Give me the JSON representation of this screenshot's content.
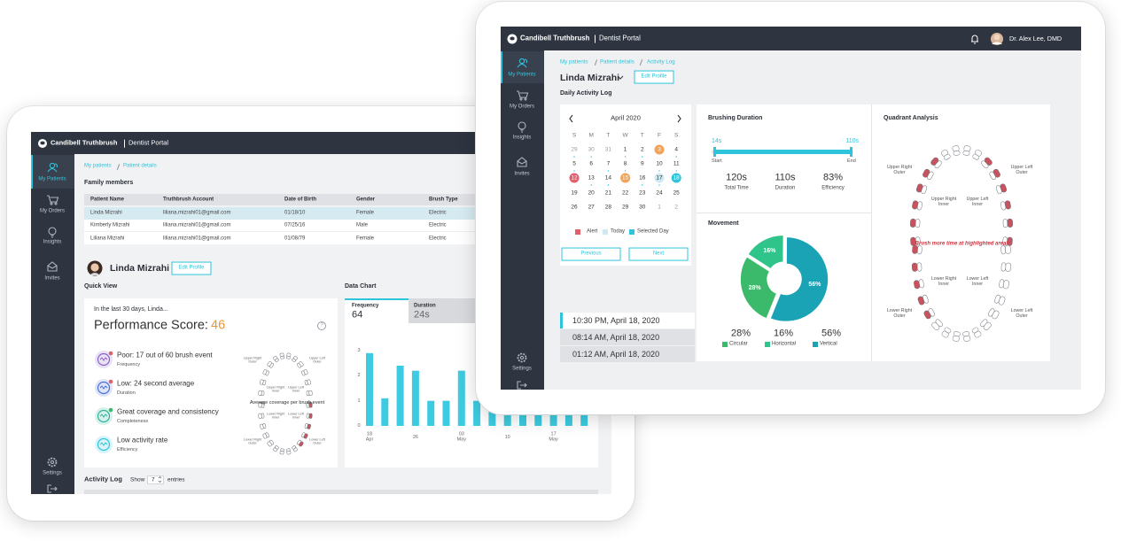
{
  "back_screen": {
    "header": {
      "brand": "Candibell Truthbrush",
      "portal": "Dentist Portal"
    },
    "nav": [
      "My Patients",
      "My Orders",
      "Insights",
      "Invites",
      "Settings"
    ],
    "breadcrumb": [
      "My patients",
      "Patient details"
    ],
    "family": {
      "title": "Family members",
      "columns": [
        "Patient Name",
        "Truthbrush Account",
        "Date of Birth",
        "Gender",
        "Brush Type"
      ],
      "rows": [
        [
          "Linda Mizrahi",
          "liliana.mizrahi01@gmail.com",
          "01/18/10",
          "Female",
          "Electric"
        ],
        [
          "Kimberly Mizrahi",
          "liliana.mizrahi01@gmail.com",
          "07/25/16",
          "Male",
          "Electric"
        ],
        [
          "Liliana Mizrahi",
          "liliana.mizrahi01@gmail.com",
          "01/08/79",
          "Female",
          "Electric"
        ]
      ]
    },
    "patient": {
      "name": "Linda Mizrahi",
      "edit": "Edit Profile"
    },
    "quick_view": {
      "title": "Quick View",
      "intro": "In the last 30 days, Linda...",
      "score_label": "Performance Score:",
      "score": 46,
      "help": "?",
      "items": [
        {
          "text": "Poor: 17 out of 60 brush event",
          "metric": "Frequency"
        },
        {
          "text": "Low: 24 second average",
          "metric": "Duration"
        },
        {
          "text": "Great coverage and consistency",
          "metric": "Completeness"
        },
        {
          "text": "Low activity rate",
          "metric": "Efficiency"
        }
      ],
      "coverage_caption": "Average coverage per brush event",
      "tooth_labels": [
        "Upper Right Outer",
        "Upper Left Outer",
        "Upper Right Inner",
        "Upper Left Inner",
        "Lower Right Inner",
        "Lower Left Inner",
        "Lower Right Outer",
        "Lower Left Outer"
      ]
    },
    "data_chart": {
      "title": "Data Chart",
      "tabs": [
        {
          "name": "Frequency",
          "value": "64"
        },
        {
          "name": "Duration",
          "value": "24s"
        }
      ],
      "chart": {
        "type": "bar",
        "categories": [
          "18 Apr",
          null,
          null,
          "26",
          null,
          null,
          "03 May",
          null,
          null,
          "10",
          null,
          null,
          "17 May",
          null,
          null
        ],
        "values": [
          2.9,
          1.1,
          2.4,
          2.2,
          1,
          1,
          2.2,
          1,
          1,
          1.6,
          1,
          1.3,
          1,
          2.1,
          1
        ],
        "color": "#3ccbe0",
        "ylim": [
          0,
          3
        ],
        "yticks": [
          0,
          1,
          2,
          3
        ]
      }
    },
    "activity_log": {
      "title": "Activity Log",
      "show": "Show",
      "count": 7,
      "entries": "entries"
    }
  },
  "front_screen": {
    "header": {
      "brand": "Candibell Truthbrush",
      "portal": "Dentist Portal",
      "user": "Dr. Alex Lee, DMD"
    },
    "nav": [
      "My Patients",
      "My Orders",
      "Insights",
      "Invites",
      "Settings"
    ],
    "breadcrumb": [
      "My patients",
      "Patient details",
      "Activity Log"
    ],
    "patient": {
      "name": "Linda Mizrahi",
      "edit": "Edit Profile"
    },
    "section_title": "Daily Activity Log",
    "calendar": {
      "month": "April 2020",
      "weekdays": [
        "S",
        "M",
        "T",
        "W",
        "T",
        "F",
        "S"
      ],
      "weeks": [
        [
          29,
          30,
          31,
          1,
          2,
          3,
          4
        ],
        [
          5,
          6,
          7,
          8,
          9,
          10,
          11
        ],
        [
          12,
          13,
          14,
          15,
          16,
          17,
          18
        ],
        [
          19,
          20,
          21,
          22,
          23,
          24,
          25
        ],
        [
          26,
          27,
          28,
          29,
          30,
          1,
          2
        ]
      ],
      "legend": [
        "Alert",
        "Today",
        "Selected Day"
      ],
      "buttons": [
        "Previous",
        "Next"
      ]
    },
    "times": [
      "10:30 PM, April 18, 2020",
      "08:14 AM, April 18, 2020",
      "01:12 AM, April 18, 2020"
    ],
    "brushing": {
      "title": "Brushing Duration",
      "min_label": "14s",
      "max_label": "110s",
      "start": "Start",
      "end": "End",
      "stats": [
        {
          "value": "120s",
          "label": "Total Time"
        },
        {
          "value": "110s",
          "label": "Duration"
        },
        {
          "value": "83%",
          "label": "Efficiency"
        }
      ]
    },
    "movement": {
      "type": "pie",
      "title": "Movement",
      "categories": [
        "Circular",
        "Horizontal",
        "Vertical"
      ],
      "values": [
        28,
        16,
        56
      ],
      "value_labels": [
        "28%",
        "16%",
        "56%"
      ],
      "colors": [
        "#3cba6b",
        "#2fc48a",
        "#1aa3b5"
      ]
    },
    "quadrant": {
      "title": "Quadrant Analysis",
      "labels": [
        "Upper Right Outer",
        "Upper Left Outer",
        "Upper Right Inner",
        "Upper Left Inner",
        "Lower Right Inner",
        "Lower Left Inner",
        "Lower Right Outer",
        "Lower Left Outer"
      ],
      "warning": "Brush more time at highlighted area!"
    }
  }
}
